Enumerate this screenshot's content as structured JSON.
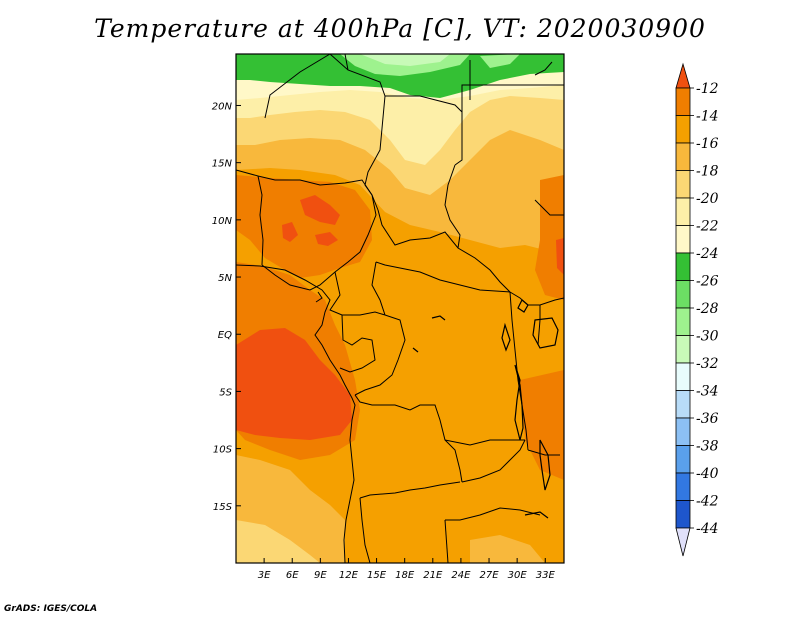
{
  "title": "Temperature at 400hPa [C], VT: 2020030900",
  "credit": "GrADS: IGES/COLA",
  "map": {
    "lon_range": [
      0,
      35
    ],
    "lat_range": [
      -20,
      24.5
    ],
    "lon_ticks": [
      {
        "value": 3,
        "label": "3E"
      },
      {
        "value": 6,
        "label": "6E"
      },
      {
        "value": 9,
        "label": "9E"
      },
      {
        "value": 12,
        "label": "12E"
      },
      {
        "value": 15,
        "label": "15E"
      },
      {
        "value": 18,
        "label": "18E"
      },
      {
        "value": 21,
        "label": "21E"
      },
      {
        "value": 24,
        "label": "24E"
      },
      {
        "value": 27,
        "label": "27E"
      },
      {
        "value": 30,
        "label": "30E"
      },
      {
        "value": 33,
        "label": "33E"
      }
    ],
    "lat_ticks": [
      {
        "value": 20,
        "label": "20N"
      },
      {
        "value": 15,
        "label": "15N"
      },
      {
        "value": 10,
        "label": "10N"
      },
      {
        "value": 5,
        "label": "5N"
      },
      {
        "value": 0,
        "label": "EQ"
      },
      {
        "value": -5,
        "label": "5S"
      },
      {
        "value": -10,
        "label": "10S"
      },
      {
        "value": -15,
        "label": "15S"
      }
    ]
  },
  "colorbar": {
    "labels": [
      "-12",
      "-14",
      "-16",
      "-18",
      "-20",
      "-22",
      "-24",
      "-26",
      "-28",
      "-30",
      "-32",
      "-34",
      "-36",
      "-38",
      "-40",
      "-42",
      "-44"
    ],
    "colors": [
      "#f05010",
      "#f07e00",
      "#f5a000",
      "#f8b83c",
      "#fbd774",
      "#fdefa8",
      "#fff8c8",
      "#34c034",
      "#6cde64",
      "#9ef28e",
      "#c8fab8",
      "#e8fcfc",
      "#b8dcf8",
      "#8cc0f4",
      "#5aa0ec",
      "#3278e2",
      "#1e56cc",
      "#1034b0",
      "#0a1880",
      "#e0e0fa"
    ]
  }
}
